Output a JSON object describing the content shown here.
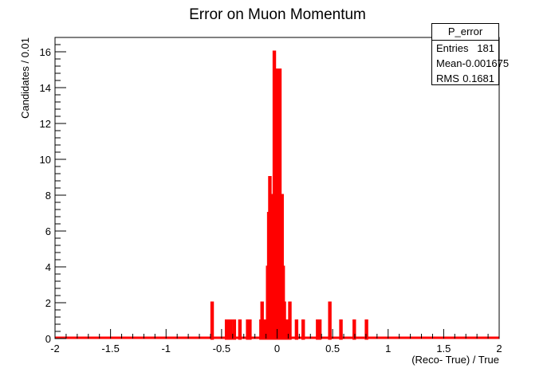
{
  "chart_data": {
    "type": "bar",
    "title": "Error on Muon Momentum",
    "xlabel": "(Reco- True) / True",
    "ylabel": "Candidates  / 0.01",
    "xlim": [
      -2,
      2
    ],
    "ylim": [
      0,
      16.8
    ],
    "x_ticks": [
      "-2",
      "-1.5",
      "-1",
      "-0.5",
      "0",
      "0.5",
      "1",
      "1.5",
      "2"
    ],
    "y_ticks": [
      "0",
      "2",
      "4",
      "6",
      "8",
      "10",
      "12",
      "14",
      "16"
    ],
    "bin_width": 0.01,
    "bins": [
      {
        "x": -0.585,
        "y": 2
      },
      {
        "x": -0.455,
        "y": 1
      },
      {
        "x": -0.435,
        "y": 1
      },
      {
        "x": -0.415,
        "y": 1
      },
      {
        "x": -0.385,
        "y": 1
      },
      {
        "x": -0.335,
        "y": 1
      },
      {
        "x": -0.265,
        "y": 1
      },
      {
        "x": -0.245,
        "y": 1
      },
      {
        "x": -0.145,
        "y": 1
      },
      {
        "x": -0.135,
        "y": 2
      },
      {
        "x": -0.115,
        "y": 1
      },
      {
        "x": -0.105,
        "y": 1
      },
      {
        "x": -0.095,
        "y": 1
      },
      {
        "x": -0.085,
        "y": 4
      },
      {
        "x": -0.075,
        "y": 7
      },
      {
        "x": -0.065,
        "y": 9
      },
      {
        "x": -0.055,
        "y": 5
      },
      {
        "x": -0.045,
        "y": 8
      },
      {
        "x": -0.035,
        "y": 7
      },
      {
        "x": -0.025,
        "y": 16
      },
      {
        "x": -0.015,
        "y": 14
      },
      {
        "x": -0.005,
        "y": 15
      },
      {
        "x": 0.005,
        "y": 6
      },
      {
        "x": 0.015,
        "y": 10
      },
      {
        "x": 0.025,
        "y": 15
      },
      {
        "x": 0.035,
        "y": 7
      },
      {
        "x": 0.045,
        "y": 8
      },
      {
        "x": 0.055,
        "y": 4
      },
      {
        "x": 0.065,
        "y": 2
      },
      {
        "x": 0.075,
        "y": 1
      },
      {
        "x": 0.085,
        "y": 1
      },
      {
        "x": 0.095,
        "y": 1
      },
      {
        "x": 0.115,
        "y": 2
      },
      {
        "x": 0.175,
        "y": 1
      },
      {
        "x": 0.235,
        "y": 1
      },
      {
        "x": 0.365,
        "y": 1
      },
      {
        "x": 0.385,
        "y": 1
      },
      {
        "x": 0.475,
        "y": 2
      },
      {
        "x": 0.575,
        "y": 1
      },
      {
        "x": 0.695,
        "y": 1
      },
      {
        "x": 0.805,
        "y": 1
      }
    ],
    "stats": {
      "title": "P_error",
      "rows": [
        {
          "label": "Entries",
          "value": "181"
        },
        {
          "label": "Mean",
          "value": "-0.001675"
        },
        {
          "label": "RMS",
          "value": "0.1681"
        }
      ]
    },
    "colors": {
      "line": "#ff0000",
      "hatch": "#d00000",
      "axis": "#000000"
    },
    "legend_position": "top-right",
    "grid": false
  }
}
